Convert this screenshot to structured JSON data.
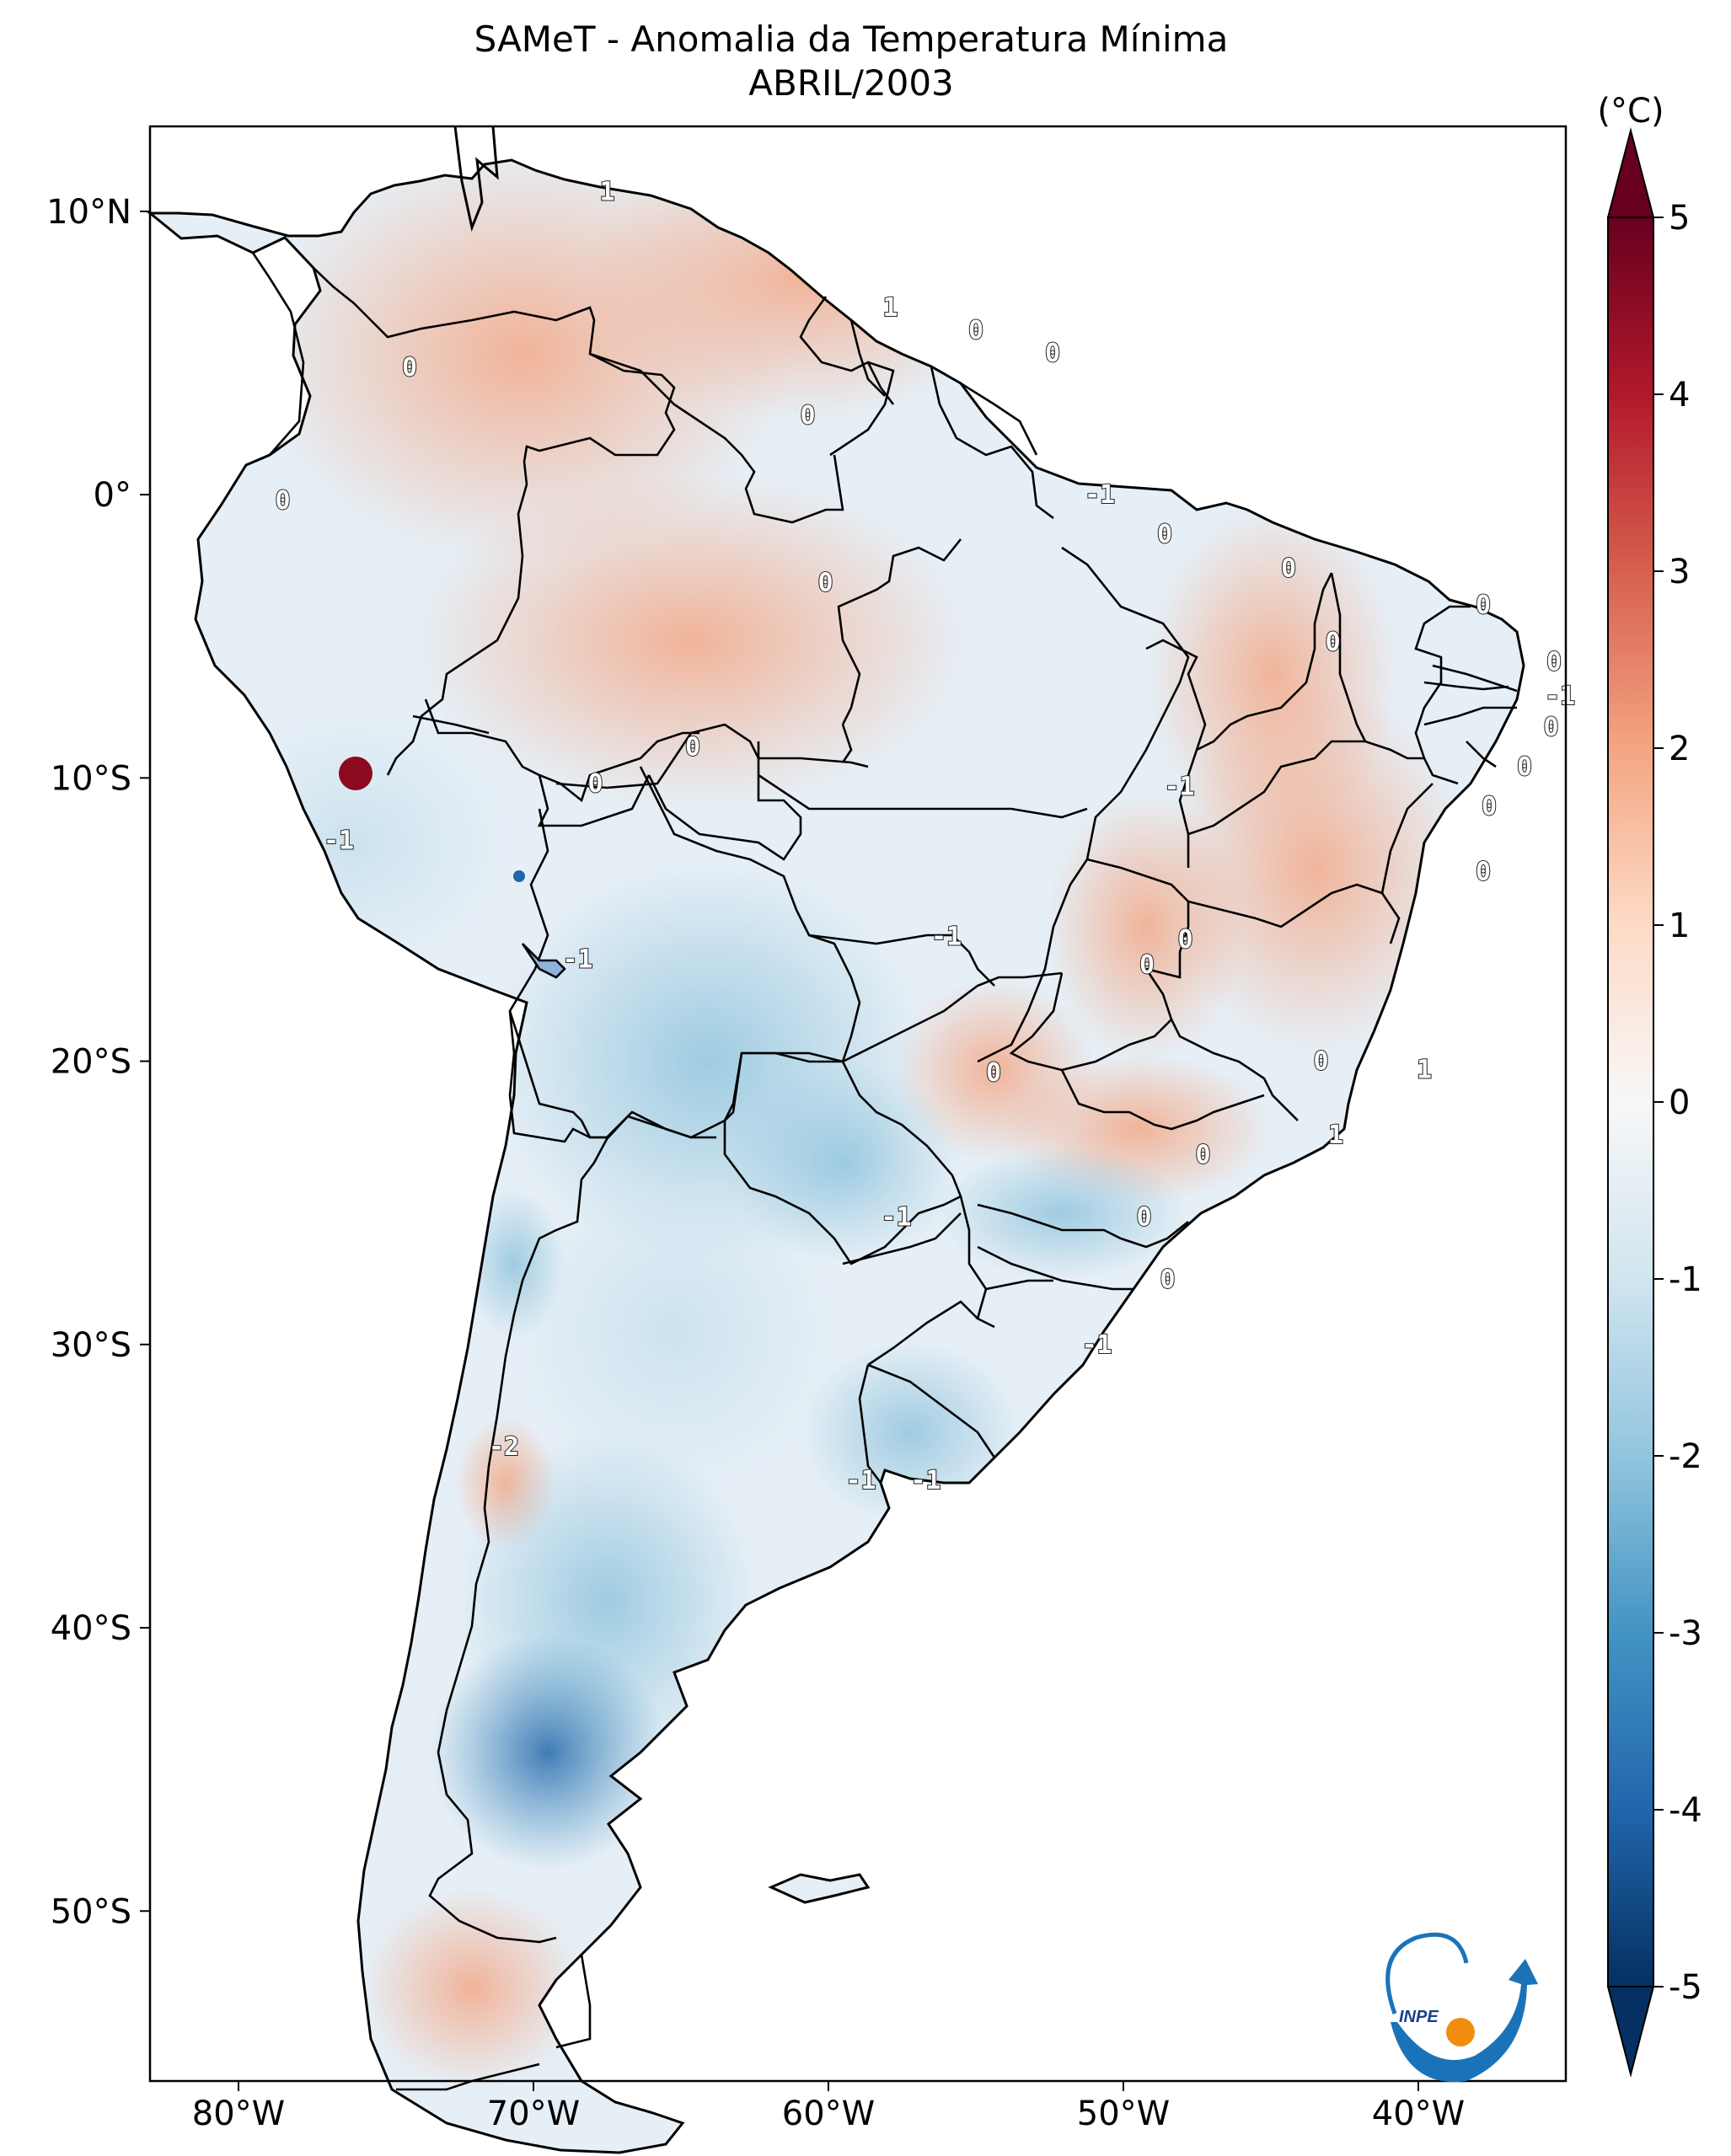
{
  "title": {
    "line1": "SAMeT - Anomalia da Temperatura Mínima",
    "line2": "ABRIL/2003"
  },
  "map": {
    "lat_labels": [
      "10°N",
      "0°",
      "10°S",
      "20°S",
      "30°S",
      "40°S",
      "50°S"
    ],
    "lon_labels": [
      "80°W",
      "70°W",
      "60°W",
      "50°W",
      "40°W"
    ],
    "contour_labels": [
      {
        "text": "1",
        "lon": -67.5,
        "lat": 10.7
      },
      {
        "text": "1",
        "lon": -57.9,
        "lat": 6.6
      },
      {
        "text": "0",
        "lon": -55.0,
        "lat": 5.8
      },
      {
        "text": "0",
        "lon": -52.4,
        "lat": 5.0
      },
      {
        "text": "0",
        "lon": -74.2,
        "lat": 4.5
      },
      {
        "text": "0",
        "lon": -60.7,
        "lat": 2.8
      },
      {
        "text": "0",
        "lon": -78.5,
        "lat": -0.2
      },
      {
        "text": "-1",
        "lon": -50.8,
        "lat": 0.0
      },
      {
        "text": "0",
        "lon": -48.6,
        "lat": -1.4
      },
      {
        "text": "0",
        "lon": -44.4,
        "lat": -2.6
      },
      {
        "text": "0",
        "lon": -60.1,
        "lat": -3.1
      },
      {
        "text": "0",
        "lon": -37.8,
        "lat": -3.9
      },
      {
        "text": "0",
        "lon": -42.9,
        "lat": -5.2
      },
      {
        "text": "0",
        "lon": -35.4,
        "lat": -5.9
      },
      {
        "text": "-1",
        "lon": -35.2,
        "lat": -7.1
      },
      {
        "text": "0",
        "lon": -35.5,
        "lat": -8.2
      },
      {
        "text": "0",
        "lon": -64.6,
        "lat": -8.9
      },
      {
        "text": "0",
        "lon": -36.4,
        "lat": -9.6
      },
      {
        "text": "0",
        "lon": -67.9,
        "lat": -10.2
      },
      {
        "text": "-1",
        "lon": -48.1,
        "lat": -10.3
      },
      {
        "text": "0",
        "lon": -37.6,
        "lat": -11.0
      },
      {
        "text": "-1",
        "lon": -76.6,
        "lat": -12.2
      },
      {
        "text": "0",
        "lon": -37.8,
        "lat": -13.3
      },
      {
        "text": "-1",
        "lon": -56.0,
        "lat": -15.6
      },
      {
        "text": "0",
        "lon": -47.9,
        "lat": -15.7
      },
      {
        "text": "0",
        "lon": -49.2,
        "lat": -16.6
      },
      {
        "text": "-1",
        "lon": -68.5,
        "lat": -16.4
      },
      {
        "text": "0",
        "lon": -43.3,
        "lat": -20.0
      },
      {
        "text": "1",
        "lon": -39.8,
        "lat": -20.3
      },
      {
        "text": "0",
        "lon": -54.4,
        "lat": -20.4
      },
      {
        "text": "1",
        "lon": -42.8,
        "lat": -22.6
      },
      {
        "text": "0",
        "lon": -47.3,
        "lat": -23.3
      },
      {
        "text": "0",
        "lon": -49.3,
        "lat": -25.5
      },
      {
        "text": "-1",
        "lon": -57.7,
        "lat": -25.5
      },
      {
        "text": "0",
        "lon": -48.5,
        "lat": -27.7
      },
      {
        "text": "-1",
        "lon": -50.9,
        "lat": -30.0
      },
      {
        "text": "-2",
        "lon": -71.0,
        "lat": -33.6
      },
      {
        "text": "-1",
        "lon": -58.9,
        "lat": -34.8
      },
      {
        "text": "-1",
        "lon": -56.7,
        "lat": -34.8
      }
    ]
  },
  "colorbar": {
    "unit": "(°C)",
    "ticks": [
      "5",
      "4",
      "3",
      "2",
      "1",
      "0",
      "-1",
      "-2",
      "-3",
      "-4",
      "-5"
    ],
    "min": -5,
    "max": 5,
    "colors": [
      "#053061",
      "#2166ac",
      "#4393c3",
      "#92c5de",
      "#d1e5f0",
      "#f7f7f7",
      "#fddbc7",
      "#f4a582",
      "#d6604d",
      "#b2182b",
      "#67001f"
    ]
  },
  "logo": {
    "text": "INPE"
  }
}
